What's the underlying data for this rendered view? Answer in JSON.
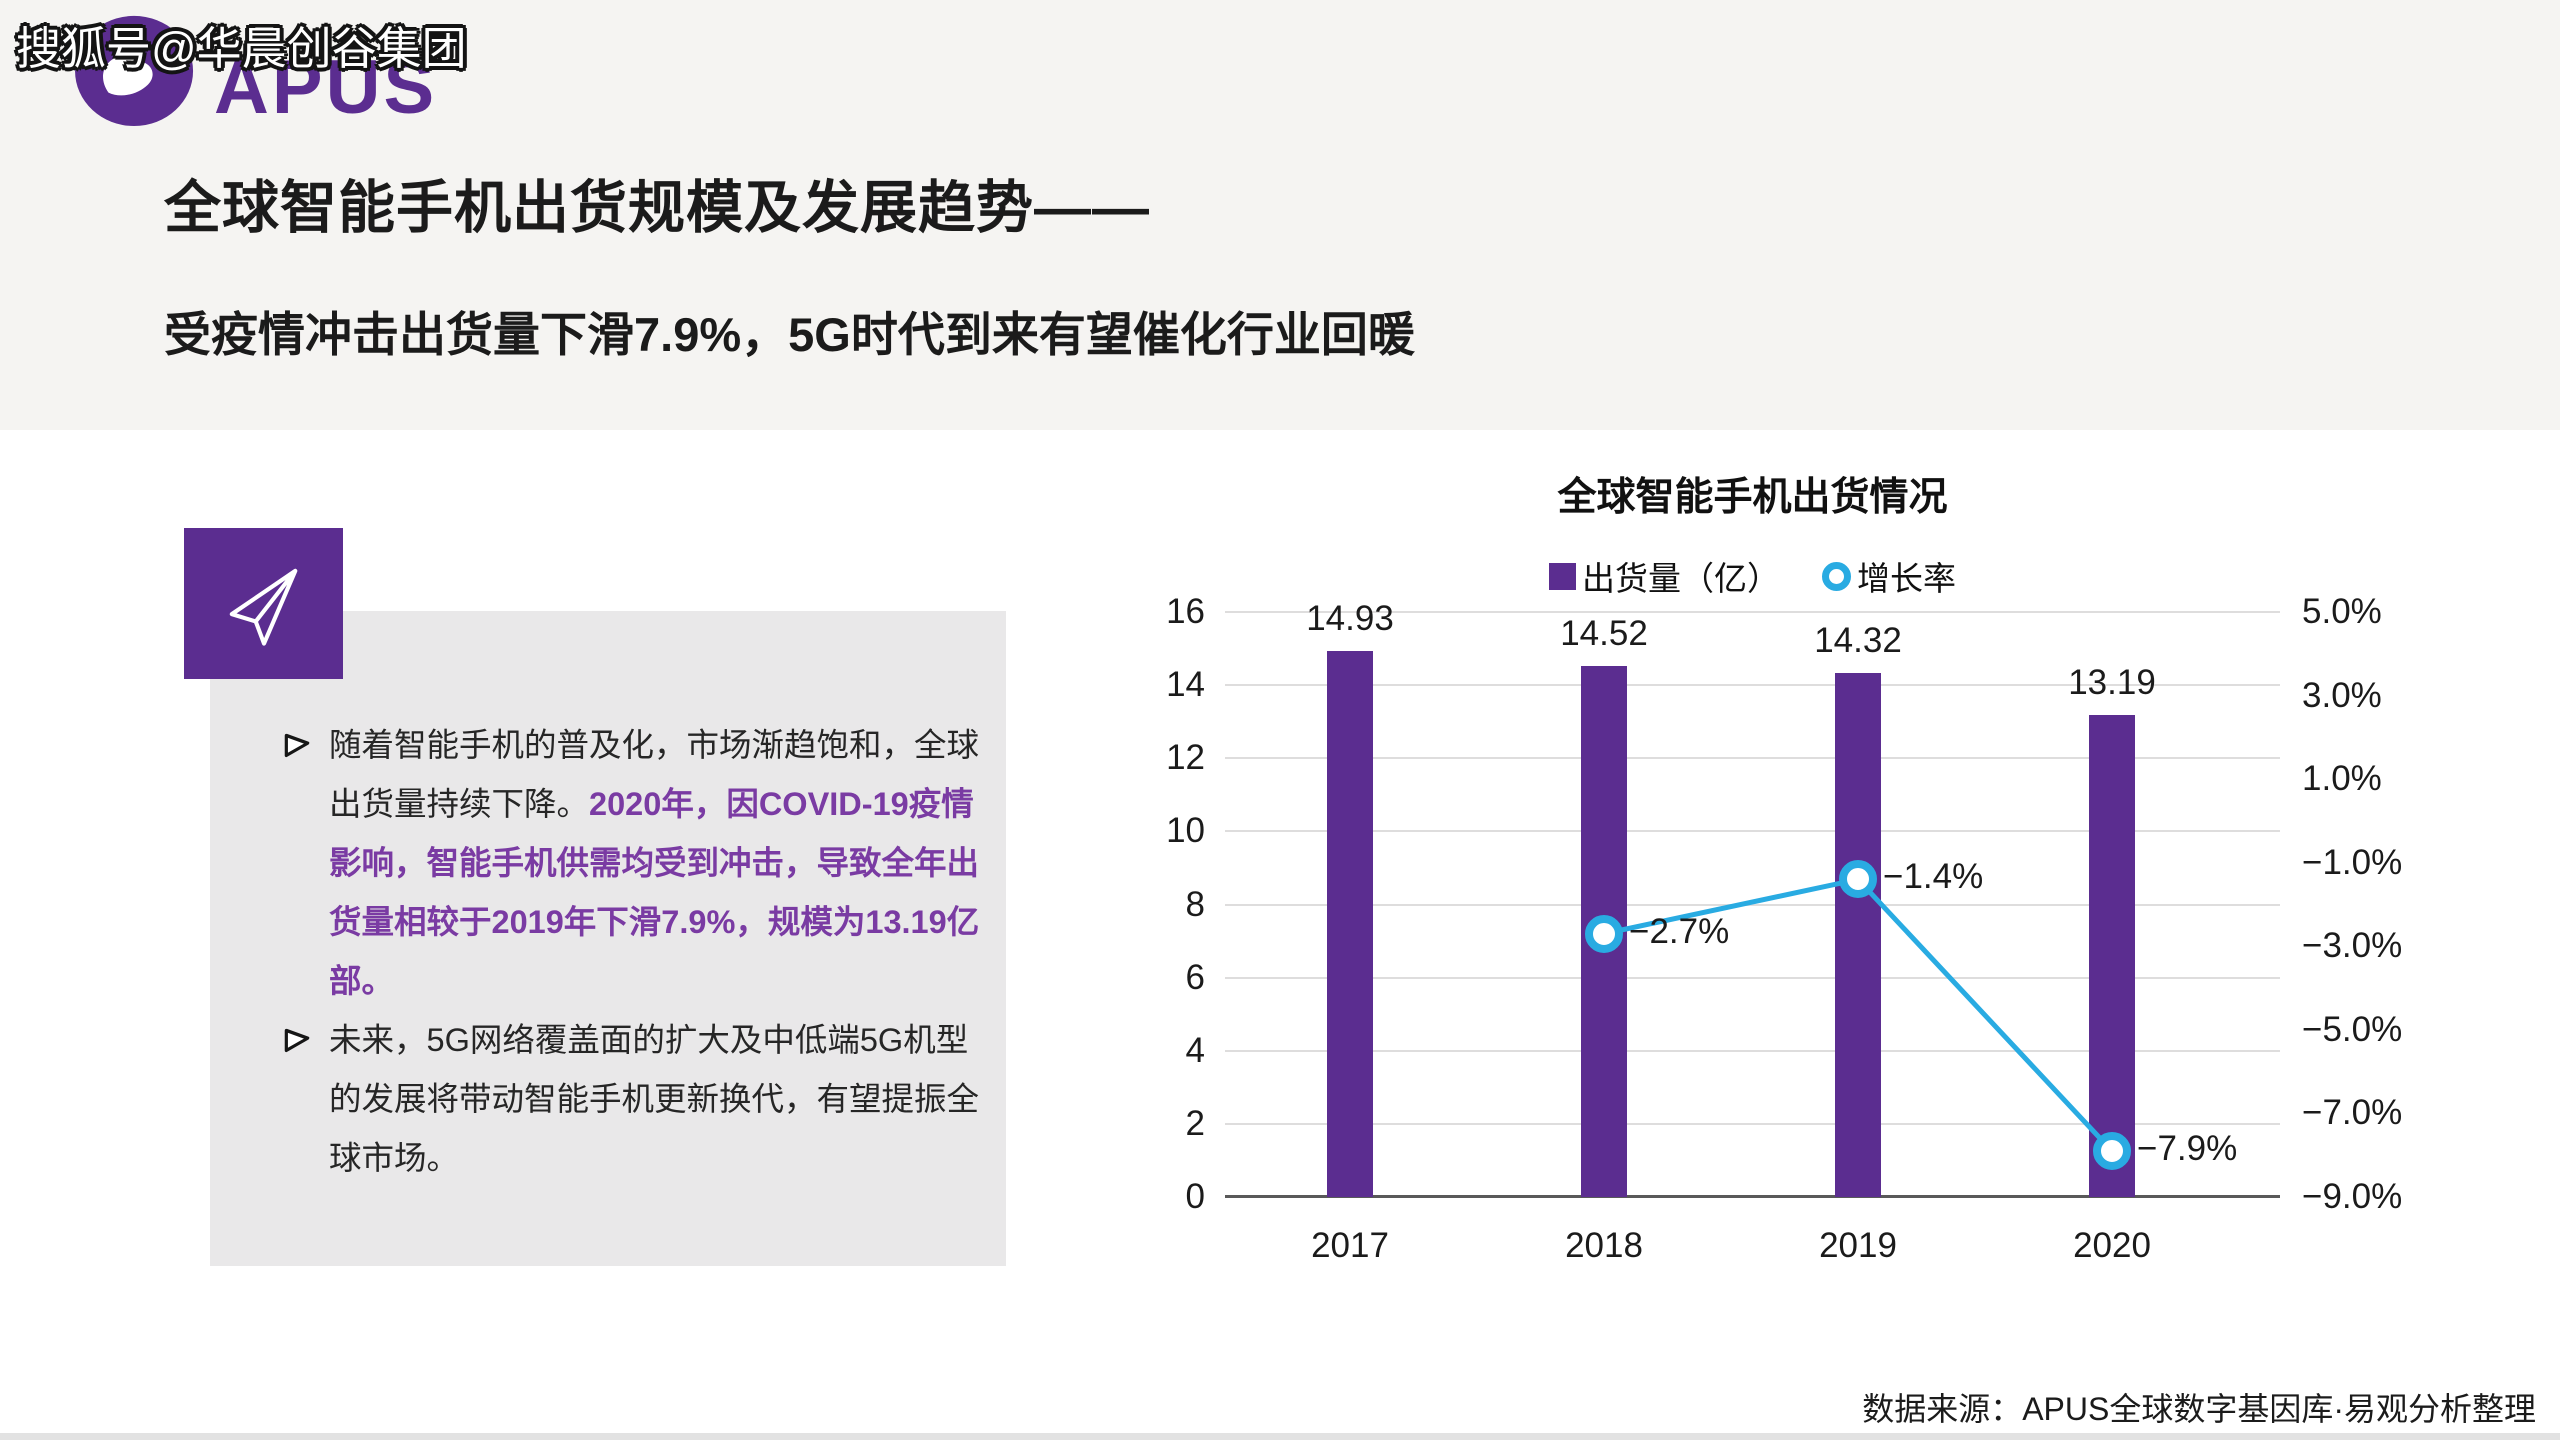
{
  "watermark": "搜狐号@华晨创谷集团",
  "logo": {
    "brand": "APUS"
  },
  "header": {
    "title_line1": "全球智能手机出货规模及发展趋势——",
    "title_line2": "受疫情冲击出货量下滑7.9%，5G时代到来有望催化行业回暖"
  },
  "insights": {
    "bullet1_black": "随着智能手机的普及化，市场渐趋饱和，全球出货量持续下降。",
    "bullet1_purple": "2020年，因COVID-19疫情影响，智能手机供需均受到冲击，导致全年出货量相较于2019年下滑7.9%，规模为13.19亿部。",
    "bullet2": "未来，5G网络覆盖面的扩大及中低端5G机型的发展将带动智能手机更新换代，有望提振全球市场。"
  },
  "chart_data": {
    "type": "bar",
    "title": "全球智能手机出货情况",
    "categories": [
      "2017",
      "2018",
      "2019",
      "2020"
    ],
    "series": [
      {
        "name": "出货量（亿）",
        "chart_type": "bar",
        "axis": "left",
        "color": "#5B2D90",
        "values": [
          14.93,
          14.52,
          14.32,
          13.19
        ],
        "labels": [
          "14.93",
          "14.52",
          "14.32",
          "13.19"
        ]
      },
      {
        "name": "增长率",
        "chart_type": "line",
        "axis": "right",
        "color": "#29ABE2",
        "values": [
          null,
          -2.7,
          -1.4,
          -7.9
        ],
        "labels": [
          "",
          "−2.7%",
          "−1.4%",
          "−7.9%"
        ]
      }
    ],
    "left_axis": {
      "min": 0,
      "max": 16,
      "step": 2,
      "ticks": [
        "16",
        "14",
        "12",
        "10",
        "8",
        "6",
        "4",
        "2",
        "0"
      ]
    },
    "right_axis": {
      "min": -9,
      "max": 5,
      "step": 2,
      "ticks": [
        "5.0%",
        "3.0%",
        "1.0%",
        "−1.0%",
        "−3.0%",
        "−5.0%",
        "−7.0%",
        "−9.0%"
      ]
    },
    "grid": true,
    "legend_position": "top"
  },
  "source": "数据来源：APUS全球数字基因库·易观分析整理",
  "colors": {
    "accent_purple": "#5B2D90",
    "purple_text": "#7A3BA3",
    "line_cyan": "#29ABE2",
    "header_bg": "#F5F4F2",
    "box_bg": "#E9E8E9"
  }
}
